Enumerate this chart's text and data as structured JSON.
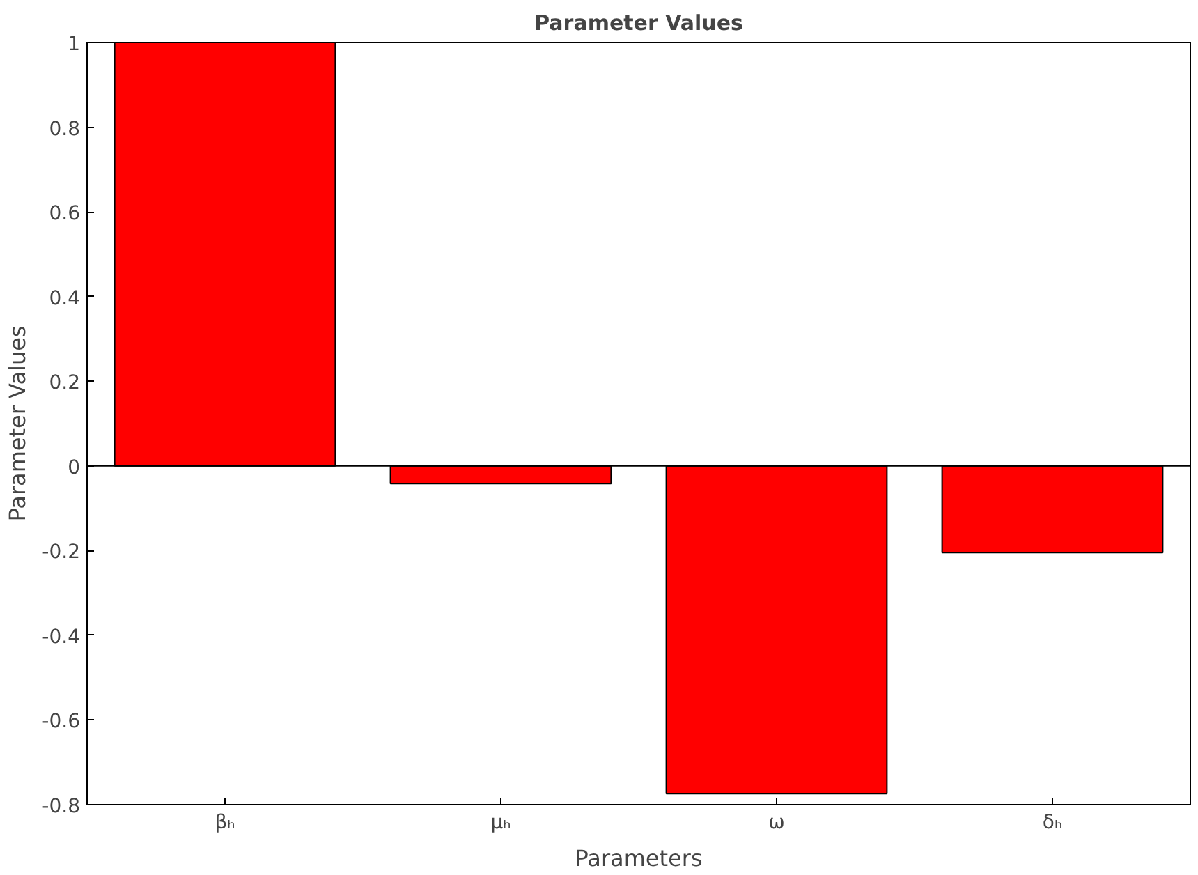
{
  "chart_data": {
    "type": "bar",
    "title": "Parameter Values",
    "xlabel": "Parameters",
    "ylabel": "Parameter Values",
    "categories": [
      "βₕ",
      "μₕ",
      "ω",
      "δₕ"
    ],
    "values": [
      1,
      -0.042,
      -0.774,
      -0.205
    ],
    "color": "#ff0000",
    "ylim": [
      -0.8,
      1
    ],
    "yticks": [
      -0.8,
      -0.6,
      -0.4,
      -0.2,
      0,
      0.2,
      0.4,
      0.6,
      0.8,
      1
    ]
  }
}
